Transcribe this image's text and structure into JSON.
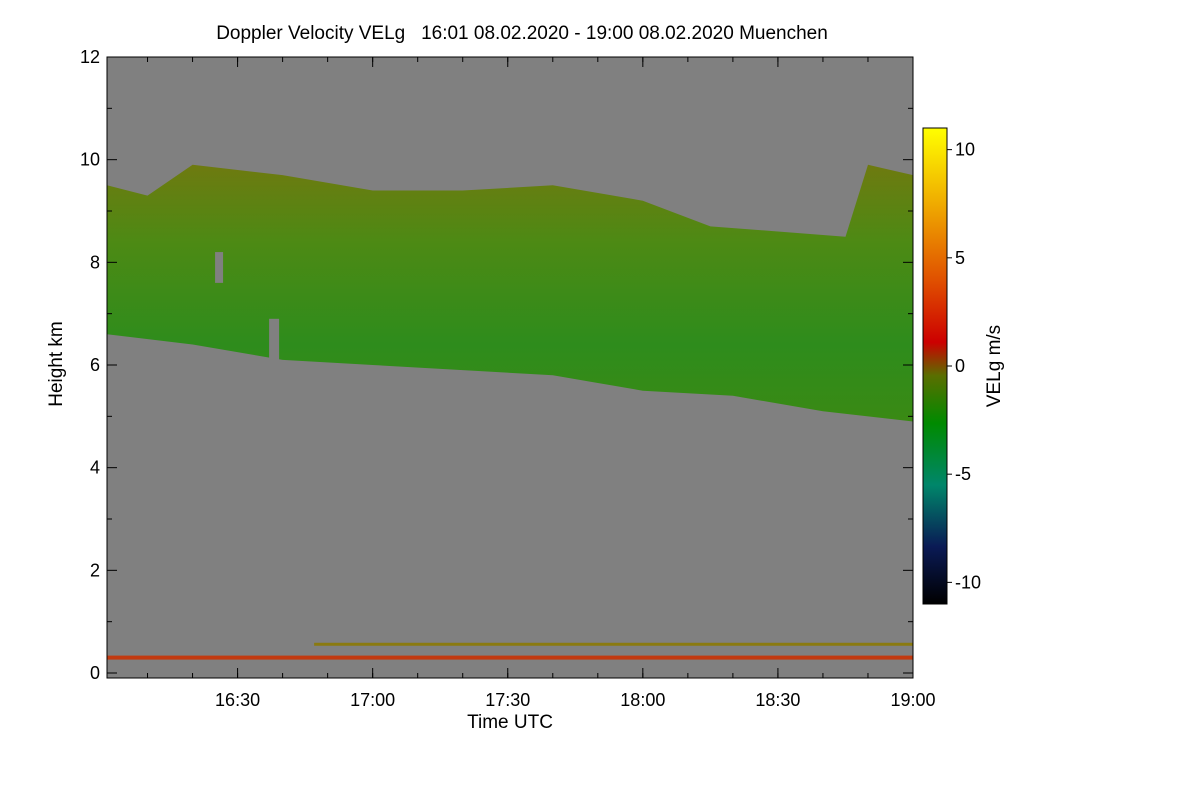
{
  "chart_data": {
    "type": "heatmap",
    "title": "Doppler Velocity VELg   16:01 08.02.2020 - 19:00 08.02.2020 Muenchen",
    "xlabel": "Time UTC",
    "ylabel": "Height km",
    "colorbar_label": "VELg m/s",
    "x_range_minutes": [
      961,
      1140
    ],
    "x_ticks": [
      {
        "minute": 990,
        "label": "16:30"
      },
      {
        "minute": 1020,
        "label": "17:00"
      },
      {
        "minute": 1050,
        "label": "17:30"
      },
      {
        "minute": 1080,
        "label": "18:00"
      },
      {
        "minute": 1110,
        "label": "18:30"
      },
      {
        "minute": 1140,
        "label": "19:00"
      }
    ],
    "ylim": [
      0,
      12
    ],
    "y_ticks": [
      0,
      2,
      4,
      6,
      8,
      10,
      12
    ],
    "colorbar_range": [
      -11,
      11
    ],
    "colorbar_ticks": [
      10,
      5,
      0,
      -5,
      -10
    ],
    "background_color": "#808080",
    "cloud_layer": {
      "note": "cloud velocity mostly between -2 and 1 m/s",
      "top_km": [
        {
          "minute": 961,
          "km": 9.5
        },
        {
          "minute": 970,
          "km": 9.3
        },
        {
          "minute": 980,
          "km": 9.9
        },
        {
          "minute": 1000,
          "km": 9.7
        },
        {
          "minute": 1020,
          "km": 9.4
        },
        {
          "minute": 1040,
          "km": 9.4
        },
        {
          "minute": 1060,
          "km": 9.5
        },
        {
          "minute": 1080,
          "km": 9.2
        },
        {
          "minute": 1095,
          "km": 8.7
        },
        {
          "minute": 1110,
          "km": 8.6
        },
        {
          "minute": 1125,
          "km": 8.5
        },
        {
          "minute": 1130,
          "km": 9.9
        },
        {
          "minute": 1140,
          "km": 9.7
        }
      ],
      "bottom_km": [
        {
          "minute": 961,
          "km": 6.6
        },
        {
          "minute": 980,
          "km": 6.4
        },
        {
          "minute": 1000,
          "km": 6.1
        },
        {
          "minute": 1020,
          "km": 6.0
        },
        {
          "minute": 1040,
          "km": 5.9
        },
        {
          "minute": 1060,
          "km": 5.8
        },
        {
          "minute": 1080,
          "km": 5.5
        },
        {
          "minute": 1100,
          "km": 5.4
        },
        {
          "minute": 1120,
          "km": 5.1
        },
        {
          "minute": 1140,
          "km": 4.9
        }
      ]
    },
    "surface_layer": {
      "height_km": 0.3,
      "velocity": 2.5
    },
    "aux_layer": {
      "height_km": 0.55,
      "from_minute": 1007,
      "to_minute": 1140,
      "velocity": 0.5
    }
  }
}
